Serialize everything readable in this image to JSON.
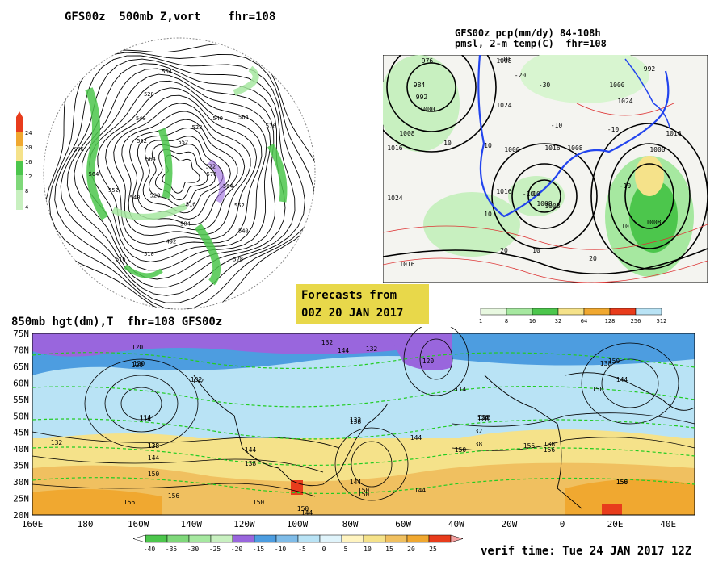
{
  "titles": {
    "polar": "GFS00z  500mb Z,vort    fhr=108",
    "precip_line1": "GFS00z pcp(mm/dy) 84-108h",
    "precip_line2": "pmsl, 2-m temp(C)  fhr=108",
    "h850": "850mb hgt(dm),T  fhr=108 GFS00z",
    "forecast_line1": "Forecasts from",
    "forecast_line2": "00Z 20 JAN 2017",
    "verif": "verif time: Tue 24 JAN 2017 12Z"
  },
  "colors": {
    "frame": "#000000",
    "vort_green": "#4cc64c",
    "vort_light": "#a6e8a0",
    "pcp_green": "#66cc66",
    "temp_cold": "#9966dd",
    "temp_blue": "#4d9de0",
    "temp_light": "#b9e3f5",
    "temp_yellow": "#f5e28a",
    "temp_orange": "#f0a830",
    "temp_red": "#e83c1c",
    "isotherm": "#22cc22",
    "freeze_line": "#2244ee"
  },
  "chart_data": [
    {
      "type": "heatmap",
      "panel": "500mb height and vorticity (polar stereographic)",
      "title": "GFS00z  500mb Z,vort    fhr=108",
      "colorbar_levels": [
        "4",
        "8",
        "12",
        "16",
        "20",
        "24"
      ],
      "contour_labels": [
        "576",
        "564",
        "552",
        "540",
        "528",
        "516",
        "504",
        "492",
        "510",
        "516",
        "528",
        "540",
        "552",
        "564",
        "576",
        "564",
        "552",
        "540",
        "528",
        "564",
        "552",
        "528",
        "540",
        "564",
        "576",
        "522"
      ]
    },
    {
      "type": "heatmap",
      "panel": "Precipitation, sea-level pressure and 2-m temperature",
      "title_lines": [
        "GFS00z pcp(mm/dy) 84-108h",
        "pmsl, 2-m temp(C)  fhr=108"
      ],
      "colorbar_levels": [
        "1",
        "8",
        "16",
        "32",
        "64",
        "128",
        "256",
        "512"
      ],
      "isobar_labels": [
        "976",
        "984",
        "992",
        "1000",
        "1008",
        "1016",
        "1024",
        "1000",
        "1016",
        "1008",
        "1024",
        "1008",
        "1016",
        "1008",
        "1000",
        "1008",
        "1016",
        "1000",
        "1008",
        "992",
        "1024",
        "1016"
      ],
      "temperature_labels": [
        "-10",
        "-20",
        "-30",
        "10",
        "-10",
        "10",
        "-10",
        "10",
        "10",
        "-10",
        "10",
        "-10",
        "20",
        "10",
        "20"
      ]
    },
    {
      "type": "heatmap",
      "panel": "850mb geopotential height (dm) and temperature",
      "title": "850mb hgt(dm),T  fhr=108 GFS00z",
      "y_ticks": [
        "75N",
        "70N",
        "65N",
        "60N",
        "55N",
        "50N",
        "45N",
        "40N",
        "35N",
        "30N",
        "25N",
        "20N"
      ],
      "x_ticks": [
        "160E",
        "180",
        "160W",
        "140W",
        "120W",
        "100W",
        "80W",
        "60W",
        "40W",
        "20W",
        "0",
        "20E",
        "40E"
      ],
      "colorbar_levels": [
        "-40",
        "-35",
        "-30",
        "-25",
        "-20",
        "-15",
        "-10",
        "-5",
        "0",
        "5",
        "10",
        "15",
        "20",
        "25"
      ],
      "height_labels": [
        "120",
        "120",
        "132",
        "114",
        "132",
        "138",
        "144",
        "150",
        "156",
        "156",
        "144",
        "138",
        "150",
        "144",
        "132",
        "120",
        "126",
        "132",
        "138",
        "144",
        "150",
        "138",
        "156",
        "114",
        "126",
        "138",
        "132",
        "144",
        "150",
        "132",
        "144",
        "150",
        "156",
        "150",
        "138",
        "144",
        "144",
        "150",
        "156",
        "114",
        "120",
        "138",
        "126",
        "150",
        "132",
        "150"
      ]
    }
  ]
}
